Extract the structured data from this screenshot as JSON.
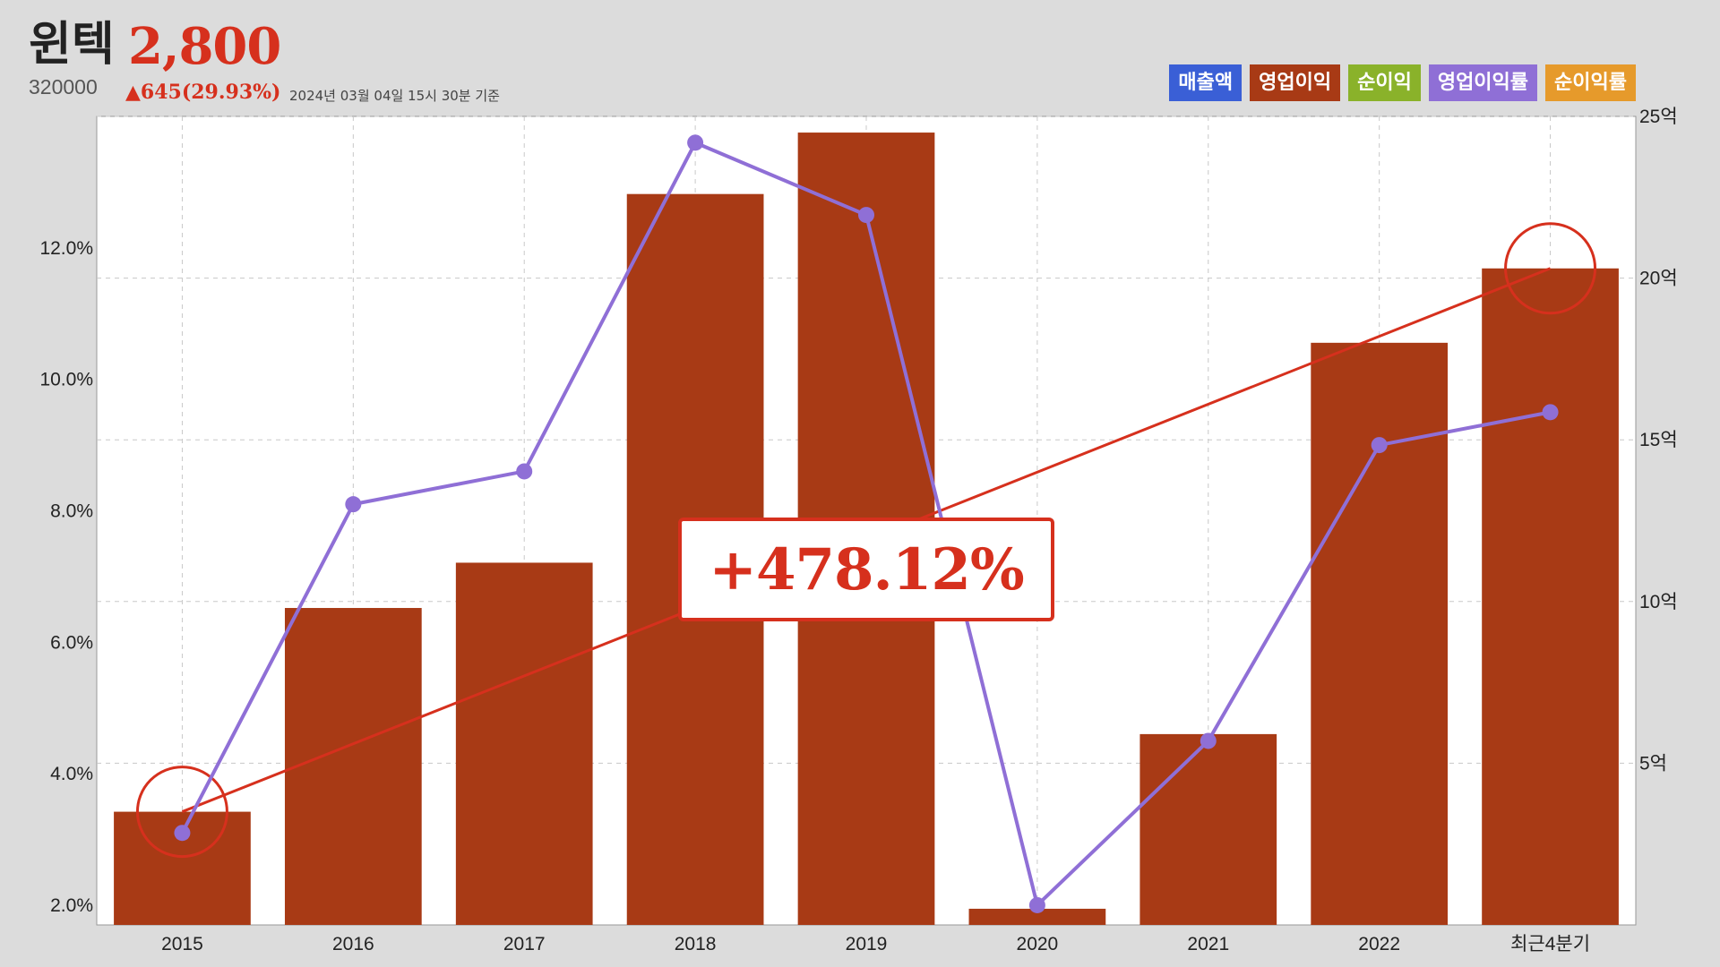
{
  "header": {
    "name": "윈텍",
    "price": "2,800",
    "code": "320000",
    "change": "▲645(29.93%)",
    "date": "2024년 03월 04일 15시 30분 기준"
  },
  "legend": [
    {
      "label": "매출액",
      "color": "#3a5fd6"
    },
    {
      "label": "영업이익",
      "color": "#a83a15"
    },
    {
      "label": "순이익",
      "color": "#8ab22a"
    },
    {
      "label": "영업이익률",
      "color": "#8f6fd6"
    },
    {
      "label": "순이익률",
      "color": "#e69a2b"
    }
  ],
  "annotation": {
    "text": "+478.12%"
  },
  "chart_data": {
    "type": "bar",
    "categories": [
      "2015",
      "2016",
      "2017",
      "2018",
      "2019",
      "2020",
      "2021",
      "2022",
      "최근4분기"
    ],
    "series": [
      {
        "name": "영업이익",
        "type": "bar",
        "axis": "right",
        "color": "#a83a15",
        "values": [
          3.5,
          9.8,
          11.2,
          22.6,
          24.5,
          0.5,
          5.9,
          18.0,
          20.3
        ]
      },
      {
        "name": "영업이익률",
        "type": "line",
        "axis": "left",
        "color": "#8f6fd6",
        "values": [
          3.1,
          8.1,
          8.6,
          13.6,
          12.5,
          2.0,
          4.5,
          9.0,
          9.5
        ]
      }
    ],
    "trendline": {
      "from_index": 0,
      "to_index": 8,
      "color": "#d6301d",
      "label": "+478.12%"
    },
    "left_axis": {
      "ticks": [
        "2.0%",
        "4.0%",
        "6.0%",
        "8.0%",
        "10.0%",
        "12.0%"
      ],
      "tick_values": [
        2,
        4,
        6,
        8,
        10,
        12
      ],
      "ylim": [
        1.7,
        14.0
      ]
    },
    "right_axis": {
      "ticks": [
        "5억",
        "10억",
        "15억",
        "20억",
        "25억"
      ],
      "tick_values": [
        5,
        10,
        15,
        20,
        25
      ],
      "ylim": [
        0.0,
        25.0
      ]
    },
    "grid": true
  }
}
